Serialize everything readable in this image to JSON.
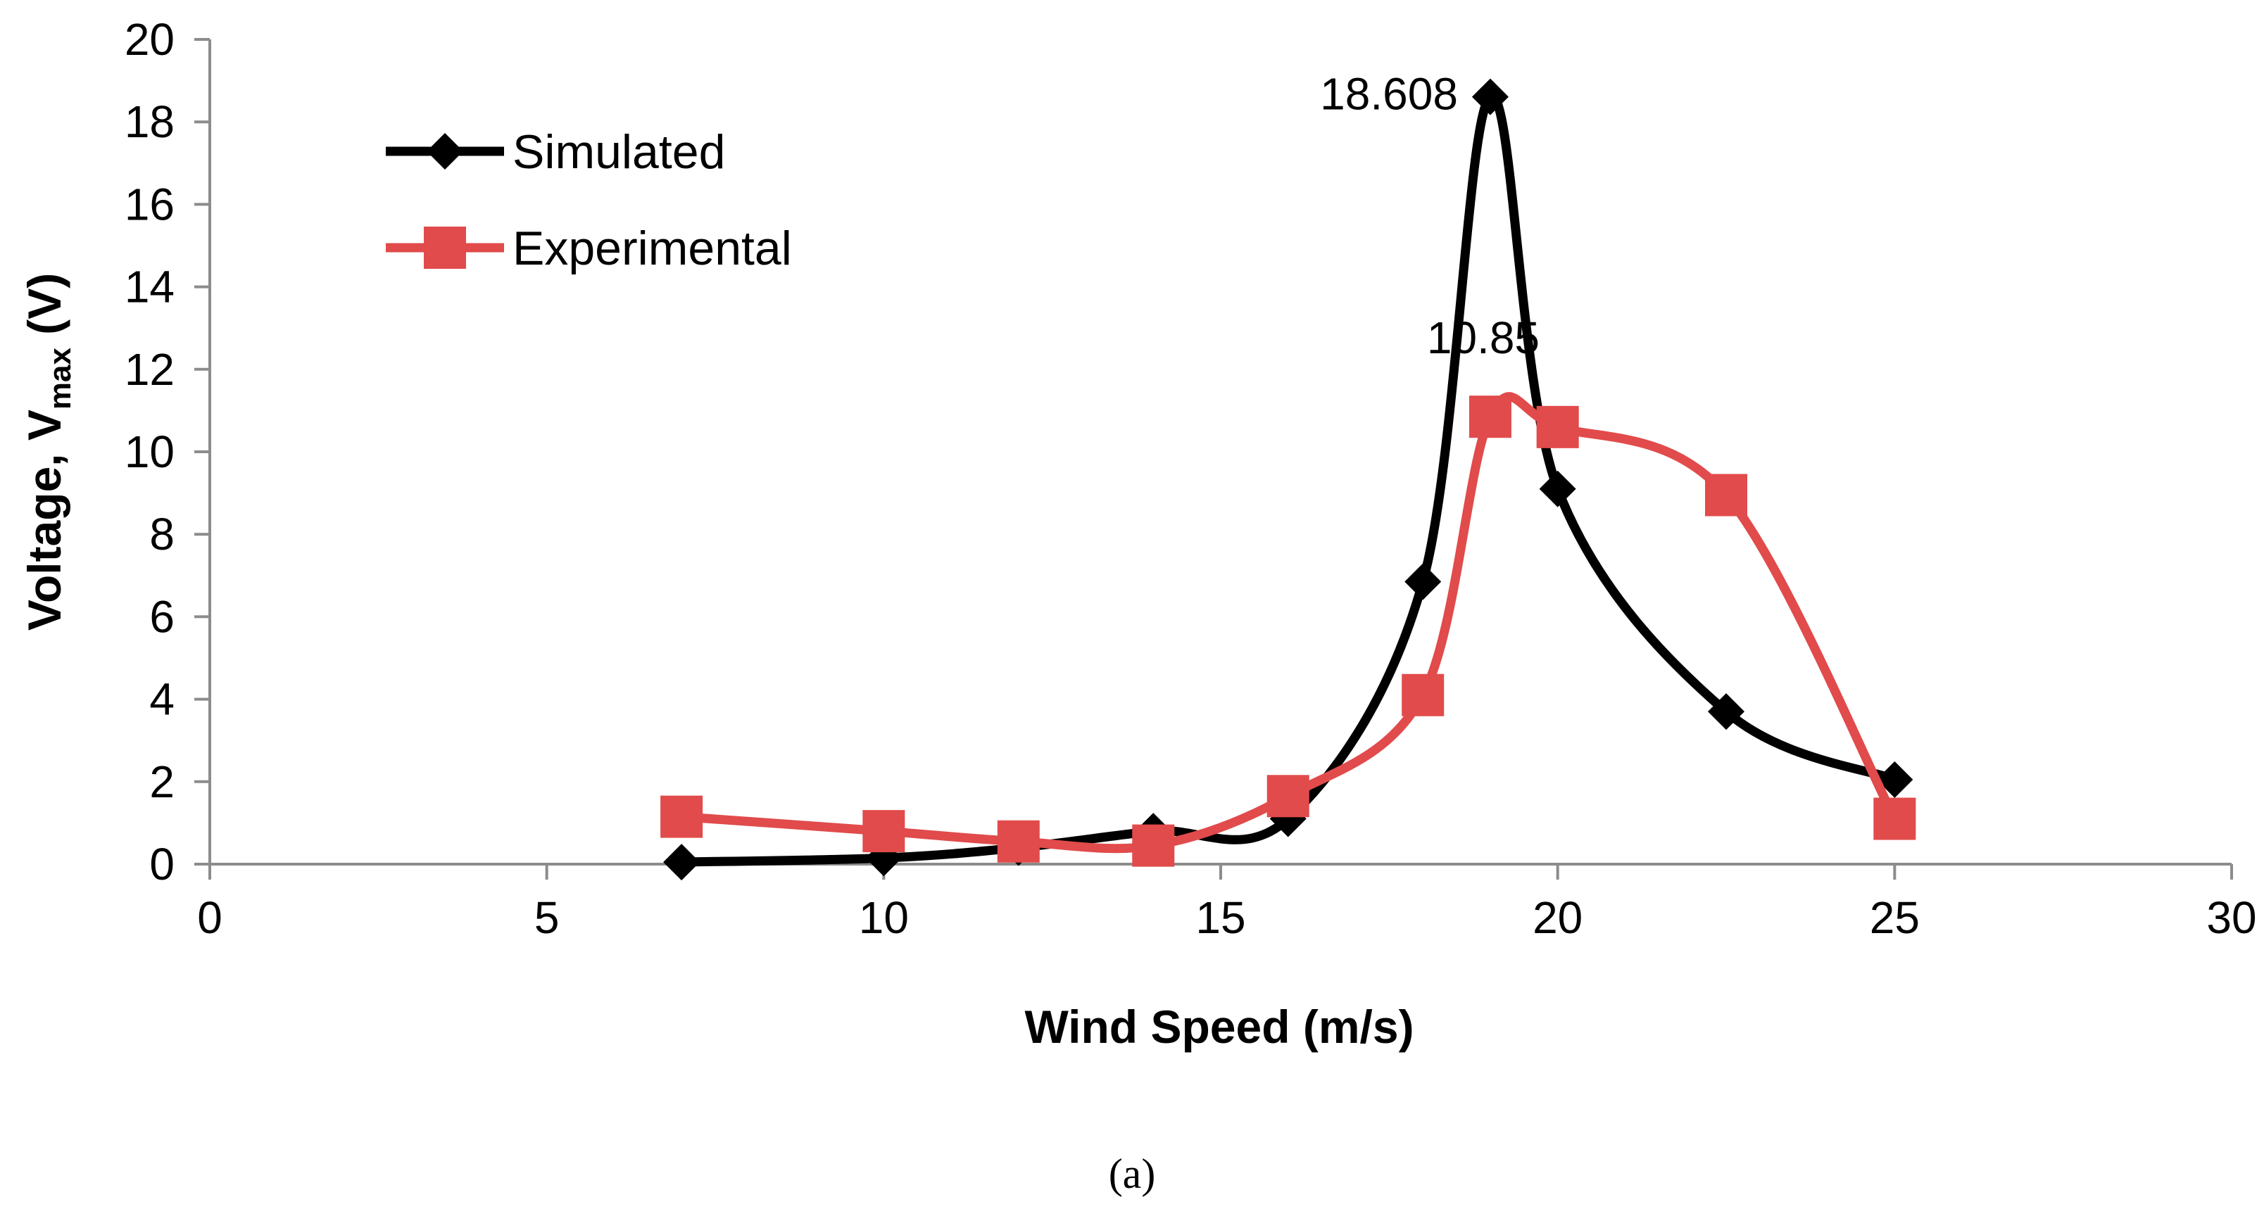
{
  "chart_data": {
    "type": "line",
    "title": "",
    "xlabel": "Wind Speed (m/s)",
    "ylabel_main": "Voltage, V",
    "ylabel_sub": "max",
    "ylabel_tail": " (V)",
    "xlim": [
      0,
      30
    ],
    "ylim": [
      0,
      20
    ],
    "xticks": [
      0,
      5,
      10,
      15,
      20,
      25,
      30
    ],
    "yticks": [
      0,
      2,
      4,
      6,
      8,
      10,
      12,
      14,
      16,
      18,
      20
    ],
    "grid": false,
    "legend_position": "top-left",
    "series": [
      {
        "name": "Simulated",
        "color": "#000000",
        "marker": "diamond",
        "x": [
          7,
          10,
          12,
          14,
          16,
          18,
          19,
          20,
          22.5,
          25
        ],
        "y": [
          0.05,
          0.15,
          0.4,
          0.8,
          1.1,
          6.85,
          18.608,
          9.1,
          3.7,
          2.05
        ]
      },
      {
        "name": "Experimental",
        "color": "#e14b4b",
        "marker": "square",
        "x": [
          7,
          10,
          12,
          14,
          16,
          18,
          19,
          20,
          22.5,
          25
        ],
        "y": [
          1.15,
          0.8,
          0.55,
          0.45,
          1.65,
          4.1,
          10.85,
          10.6,
          8.95,
          1.1
        ]
      }
    ],
    "annotations": [
      {
        "text": "18.608",
        "x": 19,
        "y": 18.608,
        "series": "Simulated"
      },
      {
        "text": "10.85",
        "x": 19,
        "y": 10.85,
        "series": "Experimental"
      }
    ]
  },
  "caption": "(a)"
}
